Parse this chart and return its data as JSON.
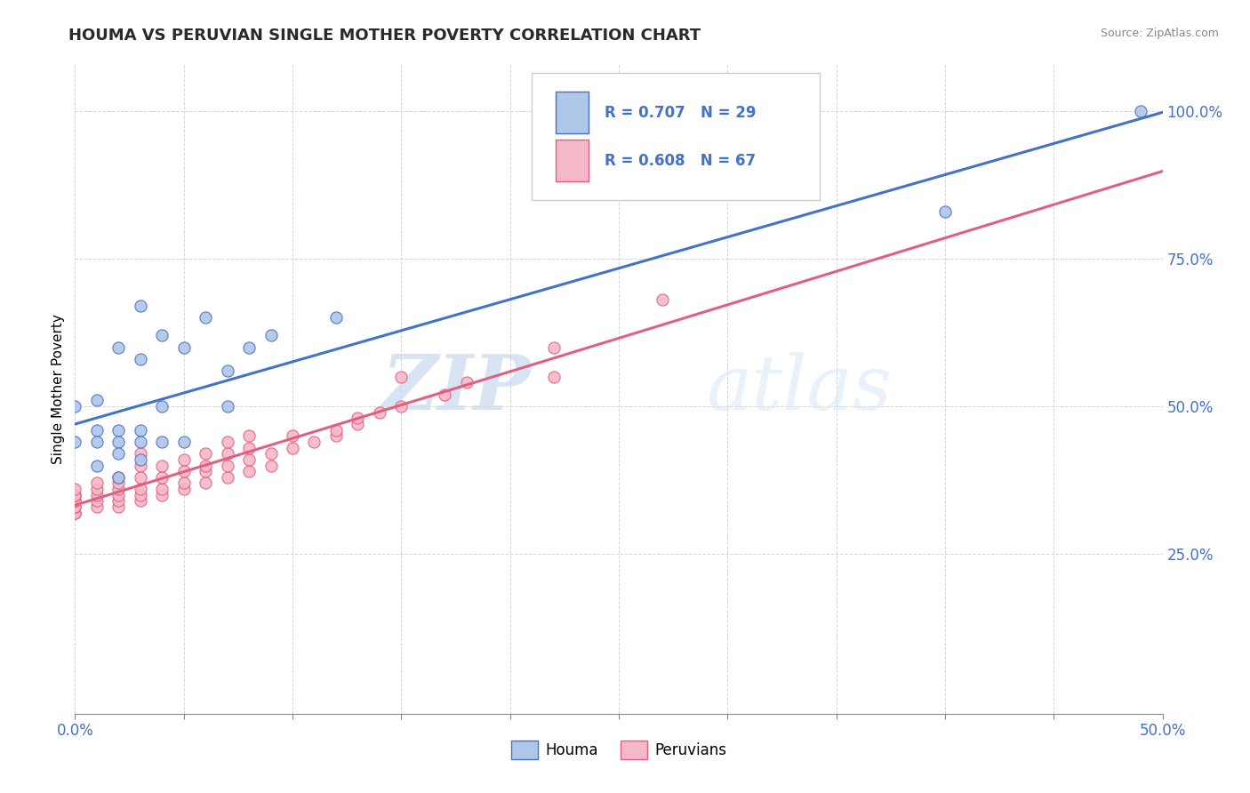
{
  "title": "HOUMA VS PERUVIAN SINGLE MOTHER POVERTY CORRELATION CHART",
  "source": "Source: ZipAtlas.com",
  "ylabel": "Single Mother Poverty",
  "houma_R": 0.707,
  "houma_N": 29,
  "peruvian_R": 0.608,
  "peruvian_N": 67,
  "houma_color": "#aec6e8",
  "peruvian_color": "#f5b8c8",
  "houma_line_color": "#4472c4",
  "peruvian_line_color": "#e06080",
  "watermark_zip": "ZIP",
  "watermark_atlas": "atlas",
  "xlim": [
    0.0,
    0.5
  ],
  "ylim": [
    -0.02,
    1.08
  ],
  "yticks": [
    0.25,
    0.5,
    0.75,
    1.0
  ],
  "ytick_labels": [
    "25.0%",
    "50.0%",
    "75.0%",
    "100.0%"
  ],
  "houma_points": [
    [
      0.0,
      0.44
    ],
    [
      0.0,
      0.5
    ],
    [
      0.01,
      0.51
    ],
    [
      0.01,
      0.46
    ],
    [
      0.01,
      0.44
    ],
    [
      0.01,
      0.4
    ],
    [
      0.02,
      0.6
    ],
    [
      0.02,
      0.46
    ],
    [
      0.02,
      0.44
    ],
    [
      0.02,
      0.42
    ],
    [
      0.02,
      0.38
    ],
    [
      0.03,
      0.67
    ],
    [
      0.03,
      0.58
    ],
    [
      0.03,
      0.46
    ],
    [
      0.03,
      0.44
    ],
    [
      0.03,
      0.41
    ],
    [
      0.04,
      0.62
    ],
    [
      0.04,
      0.5
    ],
    [
      0.04,
      0.44
    ],
    [
      0.05,
      0.6
    ],
    [
      0.05,
      0.44
    ],
    [
      0.06,
      0.65
    ],
    [
      0.07,
      0.56
    ],
    [
      0.07,
      0.5
    ],
    [
      0.08,
      0.6
    ],
    [
      0.09,
      0.62
    ],
    [
      0.12,
      0.65
    ],
    [
      0.4,
      0.83
    ],
    [
      0.49,
      1.0
    ]
  ],
  "peruvian_points": [
    [
      0.0,
      0.32
    ],
    [
      0.0,
      0.32
    ],
    [
      0.0,
      0.32
    ],
    [
      0.0,
      0.33
    ],
    [
      0.0,
      0.33
    ],
    [
      0.0,
      0.33
    ],
    [
      0.0,
      0.34
    ],
    [
      0.0,
      0.34
    ],
    [
      0.0,
      0.34
    ],
    [
      0.0,
      0.35
    ],
    [
      0.0,
      0.35
    ],
    [
      0.0,
      0.35
    ],
    [
      0.0,
      0.36
    ],
    [
      0.01,
      0.33
    ],
    [
      0.01,
      0.34
    ],
    [
      0.01,
      0.35
    ],
    [
      0.01,
      0.36
    ],
    [
      0.01,
      0.37
    ],
    [
      0.02,
      0.33
    ],
    [
      0.02,
      0.34
    ],
    [
      0.02,
      0.35
    ],
    [
      0.02,
      0.36
    ],
    [
      0.02,
      0.37
    ],
    [
      0.02,
      0.38
    ],
    [
      0.03,
      0.34
    ],
    [
      0.03,
      0.35
    ],
    [
      0.03,
      0.36
    ],
    [
      0.03,
      0.38
    ],
    [
      0.03,
      0.4
    ],
    [
      0.03,
      0.42
    ],
    [
      0.04,
      0.35
    ],
    [
      0.04,
      0.36
    ],
    [
      0.04,
      0.38
    ],
    [
      0.04,
      0.4
    ],
    [
      0.05,
      0.36
    ],
    [
      0.05,
      0.37
    ],
    [
      0.05,
      0.39
    ],
    [
      0.05,
      0.41
    ],
    [
      0.06,
      0.37
    ],
    [
      0.06,
      0.39
    ],
    [
      0.06,
      0.4
    ],
    [
      0.06,
      0.42
    ],
    [
      0.07,
      0.38
    ],
    [
      0.07,
      0.4
    ],
    [
      0.07,
      0.42
    ],
    [
      0.07,
      0.44
    ],
    [
      0.08,
      0.39
    ],
    [
      0.08,
      0.41
    ],
    [
      0.08,
      0.43
    ],
    [
      0.08,
      0.45
    ],
    [
      0.09,
      0.4
    ],
    [
      0.09,
      0.42
    ],
    [
      0.1,
      0.43
    ],
    [
      0.1,
      0.45
    ],
    [
      0.11,
      0.44
    ],
    [
      0.12,
      0.45
    ],
    [
      0.12,
      0.46
    ],
    [
      0.13,
      0.47
    ],
    [
      0.13,
      0.48
    ],
    [
      0.14,
      0.49
    ],
    [
      0.15,
      0.5
    ],
    [
      0.15,
      0.55
    ],
    [
      0.17,
      0.52
    ],
    [
      0.18,
      0.54
    ],
    [
      0.22,
      0.6
    ],
    [
      0.22,
      0.55
    ],
    [
      0.27,
      0.68
    ]
  ]
}
